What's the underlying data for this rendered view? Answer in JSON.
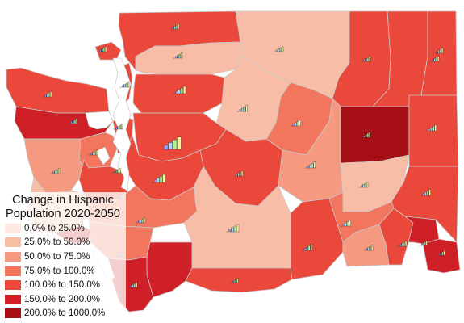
{
  "legend": {
    "title_line1": "Change in Hispanic",
    "title_line2": "Population 2020-2050",
    "items": [
      {
        "label": "0.0% to 25.0%",
        "color": "#fde9e2"
      },
      {
        "label": "25.0% to 50.0%",
        "color": "#f7bda6"
      },
      {
        "label": "50.0% to 75.0%",
        "color": "#f59a80"
      },
      {
        "label": "75.0% to 100.0%",
        "color": "#f2765e"
      },
      {
        "label": "100.0% to 150.0%",
        "color": "#e9483a"
      },
      {
        "label": "150.0% to 200.0%",
        "color": "#cf2027"
      },
      {
        "label": "200.0% to 1000.0%",
        "color": "#a50f15"
      }
    ]
  },
  "bar_colors": [
    "#9aa0ff",
    "#a9d6f7",
    "#b5ef9a",
    "#f6f49a"
  ],
  "counties": [
    {
      "id": "whatcom",
      "class": 4
    },
    {
      "id": "okanogan",
      "class": 1
    },
    {
      "id": "ferry",
      "class": 4
    },
    {
      "id": "stevens",
      "class": 4
    },
    {
      "id": "pend-oreille",
      "class": 4
    },
    {
      "id": "san-juan",
      "class": 4
    },
    {
      "id": "skagit",
      "class": 1
    },
    {
      "id": "island",
      "class": 4
    },
    {
      "id": "clallam",
      "class": 4
    },
    {
      "id": "jefferson",
      "class": 5
    },
    {
      "id": "snohomish",
      "class": 4
    },
    {
      "id": "chelan",
      "class": 1
    },
    {
      "id": "douglas",
      "class": 3
    },
    {
      "id": "lincoln",
      "class": 6
    },
    {
      "id": "spokane",
      "class": 4
    },
    {
      "id": "grays-harbor",
      "class": 2
    },
    {
      "id": "mason",
      "class": 3
    },
    {
      "id": "kitsap",
      "class": 4
    },
    {
      "id": "king",
      "class": 4
    },
    {
      "id": "kittitas",
      "class": 4
    },
    {
      "id": "grant",
      "class": 2
    },
    {
      "id": "adams",
      "class": 1
    },
    {
      "id": "whitman",
      "class": 4
    },
    {
      "id": "pacific",
      "class": 1
    },
    {
      "id": "thurston",
      "class": 4
    },
    {
      "id": "pierce",
      "class": 4
    },
    {
      "id": "lewis",
      "class": 3
    },
    {
      "id": "wahkiakum",
      "class": 5
    },
    {
      "id": "cowlitz",
      "class": 3
    },
    {
      "id": "yakima",
      "class": 1
    },
    {
      "id": "benton",
      "class": 4
    },
    {
      "id": "franklin",
      "class": 3
    },
    {
      "id": "walla-walla",
      "class": 2
    },
    {
      "id": "columbia",
      "class": 4
    },
    {
      "id": "garfield",
      "class": 5
    },
    {
      "id": "asotin",
      "class": 5
    },
    {
      "id": "skamania",
      "class": 5
    },
    {
      "id": "clark",
      "class": 5
    },
    {
      "id": "klickitat",
      "class": 4
    }
  ]
}
